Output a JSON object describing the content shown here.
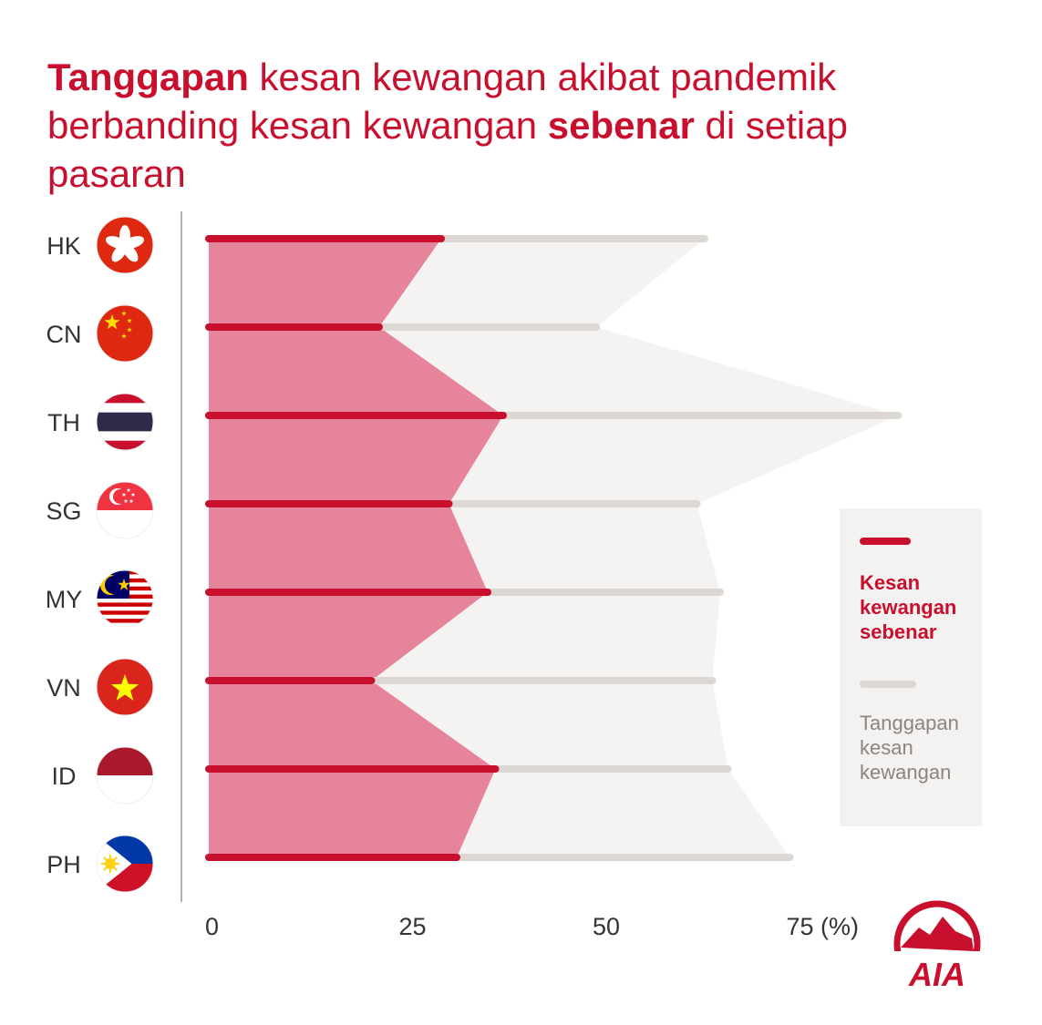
{
  "title": {
    "part1_bold": "Tanggapan",
    "part2": " kesan kewangan akibat pandemik berbanding kesan kewangan ",
    "part3_bold": "sebenar",
    "part4": " di setiap pasaran"
  },
  "colors": {
    "actual": "#c8102e",
    "actual_area": "#e5849a",
    "perceived": "#dcd7d2",
    "perceived_area": "#f5f3f1",
    "axis_line": "#999999",
    "text": "#333333"
  },
  "legend": {
    "actual_label": "Kesan kewangan sebenar",
    "perceived_label": "Tanggapan kesan kewangan"
  },
  "logo": {
    "text": "AIA"
  },
  "chart_data": {
    "type": "bar",
    "categories": [
      "HK",
      "CN",
      "TH",
      "SG",
      "MY",
      "VN",
      "ID",
      "PH"
    ],
    "category_flags": [
      "hk-flag-icon",
      "cn-flag-icon",
      "th-flag-icon",
      "sg-flag-icon",
      "my-flag-icon",
      "vn-flag-icon",
      "id-flag-icon",
      "ph-flag-icon"
    ],
    "series": [
      {
        "name": "Kesan kewangan sebenar",
        "values": [
          30,
          22,
          38,
          31,
          36,
          21,
          37,
          32
        ]
      },
      {
        "name": "Tanggapan kesan kewangan",
        "values": [
          64,
          50,
          89,
          63,
          66,
          65,
          67,
          75
        ]
      }
    ],
    "xticks": [
      "0",
      "25",
      "50",
      "75 (%)"
    ],
    "xtick_values": [
      0,
      25,
      50,
      75
    ],
    "xlim": [
      0,
      90
    ],
    "orientation": "horizontal",
    "legend_position": "right"
  }
}
